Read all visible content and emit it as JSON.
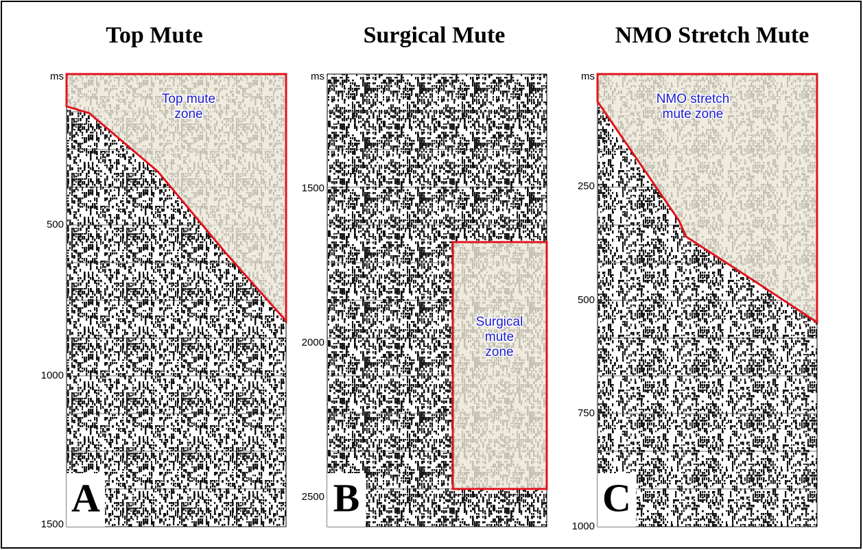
{
  "panels": [
    {
      "title": "Top Mute",
      "unit": "ms",
      "ticks": [
        "500",
        "1000",
        "1500"
      ],
      "zone": [
        "Top mute",
        "zone"
      ],
      "letter": "A"
    },
    {
      "title": "Surgical Mute",
      "unit": "ms",
      "ticks": [
        "1500",
        "2000",
        "2500"
      ],
      "zone": [
        "Surgical",
        "mute",
        "zone"
      ],
      "letter": "B"
    },
    {
      "title": "NMO Stretch Mute",
      "unit": "ms",
      "ticks": [
        "250",
        "500",
        "750",
        "1000"
      ],
      "zone": [
        "NMO stretch",
        "mute zone"
      ],
      "letter": "C"
    }
  ]
}
